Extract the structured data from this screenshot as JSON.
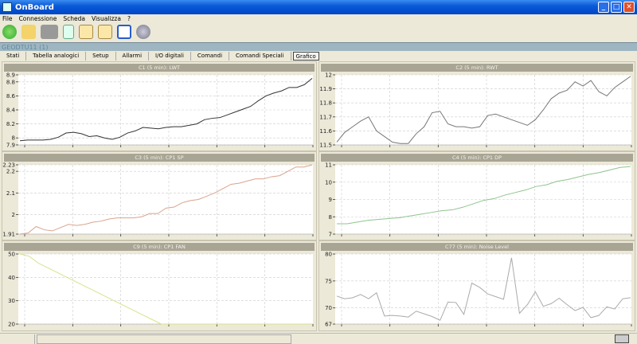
{
  "window": {
    "title": "OnBoard",
    "buttons": [
      "_",
      "□",
      "✕"
    ]
  },
  "menu": [
    "File",
    "Connessione",
    "Scheda",
    "Visualizza",
    "?"
  ],
  "toolbar": [
    "refresh-icon",
    "open-folder-icon",
    "device-icon",
    "sync-icon",
    "table-icon",
    "chart-icon",
    "checklist-icon",
    "camera-icon"
  ],
  "device": "GEODTU11 (1)",
  "tabs": [
    "Stati",
    "Tabella analogici",
    "Setup",
    "Allarmi",
    "I/O digitali",
    "Comandi",
    "Comandi Speciali",
    "Grafico"
  ],
  "active_tab": "Grafico",
  "chart_data": [
    {
      "type": "line",
      "title": "C1 (5 min): LWT",
      "color": "#333333",
      "ylim": [
        7.9,
        8.9
      ],
      "yticks": [
        "7.9",
        "8",
        "8.2",
        "8.4",
        "8.6",
        "8.8",
        "8.9"
      ],
      "grid": true,
      "values": [
        7.96,
        7.97,
        7.97,
        7.97,
        7.98,
        8.01,
        8.07,
        8.08,
        8.06,
        8.02,
        8.03,
        8.0,
        7.98,
        8.01,
        8.07,
        8.1,
        8.15,
        8.14,
        8.13,
        8.15,
        8.16,
        8.16,
        8.18,
        8.2,
        8.26,
        8.28,
        8.29,
        8.33,
        8.37,
        8.41,
        8.45,
        8.53,
        8.6,
        8.64,
        8.67,
        8.72,
        8.72,
        8.76,
        8.85
      ]
    },
    {
      "type": "line",
      "title": "C2 (5 min): RWT",
      "color": "#777777",
      "ylim": [
        11.5,
        12
      ],
      "yticks": [
        "11.5",
        "11.6",
        "11.7",
        "11.8",
        "11.9",
        "12"
      ],
      "grid": true,
      "values": [
        11.52,
        11.59,
        11.63,
        11.67,
        11.7,
        11.6,
        11.56,
        11.52,
        11.51,
        11.51,
        11.58,
        11.63,
        11.73,
        11.74,
        11.65,
        11.63,
        11.63,
        11.62,
        11.63,
        11.71,
        11.72,
        11.7,
        11.68,
        11.66,
        11.64,
        11.68,
        11.75,
        11.83,
        11.87,
        11.89,
        11.95,
        11.92,
        11.96,
        11.88,
        11.85,
        11.91,
        11.95,
        11.99
      ]
    },
    {
      "type": "line",
      "title": "C3 (5 min): CP1 SP",
      "color": "#d9a48c",
      "ylim": [
        1.91,
        2.23
      ],
      "yticks": [
        "1.91",
        "2",
        "2.1",
        "2.2",
        "2.23"
      ],
      "grid": true,
      "values": [
        1.91,
        1.915,
        1.945,
        1.93,
        1.925,
        1.94,
        1.955,
        1.95,
        1.955,
        1.965,
        1.97,
        1.98,
        1.985,
        1.985,
        1.985,
        1.99,
        2.005,
        2.005,
        2.03,
        2.035,
        2.055,
        2.065,
        2.07,
        2.085,
        2.1,
        2.12,
        2.14,
        2.145,
        2.155,
        2.165,
        2.165,
        2.175,
        2.18,
        2.2,
        2.22,
        2.22,
        2.23
      ]
    },
    {
      "type": "line",
      "title": "C4 (5 min): CP1 DP",
      "color": "#8fc48f",
      "ylim": [
        7,
        11
      ],
      "yticks": [
        "7",
        "8",
        "9",
        "10",
        "11"
      ],
      "grid": true,
      "values": [
        7.6,
        7.6,
        7.7,
        7.8,
        7.85,
        7.9,
        7.95,
        8.05,
        8.15,
        8.25,
        8.35,
        8.4,
        8.55,
        8.75,
        8.95,
        9.05,
        9.25,
        9.4,
        9.55,
        9.75,
        9.85,
        10.05,
        10.15,
        10.3,
        10.45,
        10.55,
        10.7,
        10.85,
        10.9
      ]
    },
    {
      "type": "line",
      "title": "C9 (5 min): CP1 FAN",
      "color": "#d8e28a",
      "ylim": [
        20,
        50
      ],
      "yticks": [
        "20",
        "30",
        "40",
        "50"
      ],
      "grid": true,
      "values": [
        50,
        49,
        46,
        44,
        42,
        40,
        38,
        36,
        34,
        32,
        30,
        28,
        26,
        24,
        22,
        20,
        20,
        20,
        20,
        20,
        20,
        20,
        20,
        20,
        20,
        20,
        20,
        20,
        20,
        20,
        20,
        20
      ]
    },
    {
      "type": "line",
      "title": "C77 (5 min): Noise Level",
      "color": "#aaaaaa",
      "ylim": [
        67,
        80
      ],
      "yticks": [
        "67",
        "70",
        "75",
        "80"
      ],
      "grid": true,
      "values": [
        72.2,
        71.7,
        71.9,
        72.5,
        71.7,
        72.8,
        68.5,
        68.6,
        68.5,
        68.3,
        69.4,
        68.9,
        68.4,
        67.7,
        71.1,
        71.0,
        68.8,
        74.6,
        73.8,
        72.6,
        72.1,
        71.6,
        79.3,
        69.0,
        70.6,
        73.0,
        70.3,
        70.8,
        71.8,
        70.6,
        69.5,
        70.1,
        68.2,
        68.6,
        70.2,
        69.8,
        71.7,
        71.9
      ]
    }
  ]
}
